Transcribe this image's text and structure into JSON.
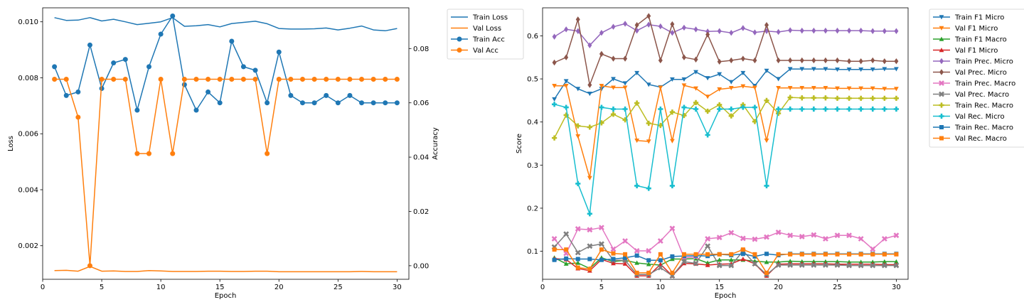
{
  "chart_data": [
    {
      "type": "line",
      "title": "",
      "xlabel": "Epoch",
      "ylabel": "Loss",
      "ylabel_right": "Accuracy",
      "xlim": [
        0,
        31
      ],
      "ylim": [
        0.0008,
        0.0105
      ],
      "ylim_right": [
        -0.005,
        0.095
      ],
      "x_ticks": [
        0,
        5,
        10,
        15,
        20,
        25,
        30
      ],
      "y_ticks": [
        0.002,
        0.004,
        0.006,
        0.008,
        0.01
      ],
      "y_ticks_right": [
        0.0,
        0.02,
        0.04,
        0.06,
        0.08
      ],
      "legend_position": "outside-top-right",
      "grid": false,
      "x": [
        1,
        2,
        3,
        4,
        5,
        6,
        7,
        8,
        9,
        10,
        11,
        12,
        13,
        14,
        15,
        16,
        17,
        18,
        19,
        20,
        21,
        22,
        23,
        24,
        25,
        26,
        27,
        28,
        29,
        30
      ],
      "series": [
        {
          "name": "Train Loss",
          "axis": "left",
          "color": "#1f77b4",
          "marker": "none",
          "values": [
            0.01015,
            0.01005,
            0.01006,
            0.01015,
            0.01003,
            0.01009,
            0.01,
            0.0099,
            0.00995,
            0.01,
            0.01015,
            0.00984,
            0.00986,
            0.0099,
            0.00982,
            0.00994,
            0.00998,
            0.01002,
            0.00993,
            0.00976,
            0.00974,
            0.00974,
            0.00975,
            0.00978,
            0.00971,
            0.00977,
            0.00985,
            0.00971,
            0.00968,
            0.00976
          ]
        },
        {
          "name": "Val Loss",
          "axis": "left",
          "color": "#ff7f0e",
          "marker": "none",
          "values": [
            0.00111,
            0.00112,
            0.00109,
            0.00126,
            0.00109,
            0.0011,
            0.00108,
            0.00108,
            0.00111,
            0.0011,
            0.00108,
            0.00108,
            0.00108,
            0.00109,
            0.00109,
            0.00108,
            0.00108,
            0.00109,
            0.00109,
            0.00107,
            0.00107,
            0.00107,
            0.00107,
            0.00107,
            0.00107,
            0.00107,
            0.00108,
            0.00107,
            0.00107,
            0.00107
          ]
        },
        {
          "name": "Train Acc",
          "axis": "right",
          "color": "#1f77b4",
          "marker": "circle",
          "values": [
            0.0733,
            0.0627,
            0.064,
            0.0813,
            0.0653,
            0.0747,
            0.076,
            0.0573,
            0.0733,
            0.0853,
            0.092,
            0.0667,
            0.0573,
            0.064,
            0.06,
            0.0827,
            0.0733,
            0.072,
            0.06,
            0.0787,
            0.0627,
            0.06,
            0.06,
            0.0627,
            0.06,
            0.0627,
            0.06,
            0.06,
            0.06,
            0.06
          ]
        },
        {
          "name": "Val Acc",
          "axis": "right",
          "color": "#ff7f0e",
          "marker": "circle",
          "values": [
            0.0687,
            0.0687,
            0.0547,
            0.0,
            0.0687,
            0.0687,
            0.0687,
            0.0413,
            0.0413,
            0.0687,
            0.0413,
            0.0687,
            0.0687,
            0.0687,
            0.0687,
            0.0687,
            0.0687,
            0.0687,
            0.0413,
            0.0687,
            0.0687,
            0.0687,
            0.0687,
            0.0687,
            0.0687,
            0.0687,
            0.0687,
            0.0687,
            0.0687,
            0.0687
          ]
        }
      ]
    },
    {
      "type": "line",
      "title": "",
      "xlabel": "Epoch",
      "ylabel": "Score",
      "xlim": [
        0,
        31
      ],
      "ylim": [
        0.035,
        0.665
      ],
      "x_ticks": [
        0,
        5,
        10,
        15,
        20,
        25,
        30
      ],
      "y_ticks": [
        0.1,
        0.2,
        0.3,
        0.4,
        0.5,
        0.6
      ],
      "legend_position": "outside-top-right",
      "grid": false,
      "x": [
        1,
        2,
        3,
        4,
        5,
        6,
        7,
        8,
        9,
        10,
        11,
        12,
        13,
        14,
        15,
        16,
        17,
        18,
        19,
        20,
        21,
        22,
        23,
        24,
        25,
        26,
        27,
        28,
        29,
        30
      ],
      "series": [
        {
          "name": "Train F1 Micro",
          "color": "#1f77b4",
          "marker": "tri-down",
          "values": [
            0.453,
            0.495,
            0.477,
            0.466,
            0.477,
            0.5,
            0.49,
            0.514,
            0.487,
            0.481,
            0.499,
            0.499,
            0.516,
            0.502,
            0.511,
            0.493,
            0.514,
            0.484,
            0.519,
            0.5,
            0.523,
            0.523,
            0.523,
            0.523,
            0.522,
            0.522,
            0.522,
            0.522,
            0.523,
            0.523
          ]
        },
        {
          "name": "Val F1 Micro",
          "color": "#ff7f0e",
          "marker": "tri-down",
          "values": [
            0.484,
            0.484,
            0.367,
            0.27,
            0.484,
            0.48,
            0.48,
            0.357,
            0.355,
            0.48,
            0.356,
            0.485,
            0.478,
            0.459,
            0.476,
            0.479,
            0.483,
            0.48,
            0.357,
            0.479,
            0.479,
            0.479,
            0.479,
            0.479,
            0.478,
            0.478,
            0.478,
            0.478,
            0.477,
            0.477
          ]
        },
        {
          "name": "Train F1 Macro",
          "color": "#2ca02c",
          "marker": "tri-up",
          "values": [
            0.085,
            0.071,
            0.073,
            0.06,
            0.085,
            0.076,
            0.079,
            0.073,
            0.07,
            0.068,
            0.082,
            0.082,
            0.083,
            0.073,
            0.08,
            0.08,
            0.08,
            0.077,
            0.075,
            0.075,
            0.077,
            0.076,
            0.076,
            0.076,
            0.076,
            0.075,
            0.075,
            0.075,
            0.076,
            0.076
          ]
        },
        {
          "name": "Val F1 Micro",
          "color": "#d62728",
          "marker": "tri-up",
          "values": [
            0.083,
            0.081,
            0.06,
            0.055,
            0.081,
            0.072,
            0.071,
            0.043,
            0.043,
            0.07,
            0.043,
            0.072,
            0.071,
            0.068,
            0.07,
            0.071,
            0.082,
            0.071,
            0.043,
            0.07,
            0.071,
            0.071,
            0.071,
            0.071,
            0.07,
            0.07,
            0.07,
            0.07,
            0.069,
            0.069
          ]
        },
        {
          "name": "Train Prec. Micro",
          "color": "#9467bd",
          "marker": "diamond",
          "values": [
            0.598,
            0.615,
            0.611,
            0.578,
            0.607,
            0.621,
            0.628,
            0.612,
            0.626,
            0.622,
            0.607,
            0.619,
            0.615,
            0.61,
            0.611,
            0.607,
            0.618,
            0.608,
            0.611,
            0.609,
            0.613,
            0.612,
            0.612,
            0.612,
            0.612,
            0.612,
            0.612,
            0.611,
            0.611,
            0.611
          ]
        },
        {
          "name": "Val Prec. Micro",
          "color": "#8c564b",
          "marker": "diamond",
          "values": [
            0.538,
            0.55,
            0.638,
            0.486,
            0.558,
            0.547,
            0.547,
            0.625,
            0.646,
            0.543,
            0.627,
            0.55,
            0.545,
            0.603,
            0.54,
            0.543,
            0.547,
            0.543,
            0.625,
            0.543,
            0.543,
            0.543,
            0.543,
            0.543,
            0.543,
            0.541,
            0.541,
            0.543,
            0.541,
            0.541
          ]
        },
        {
          "name": "Train Prec. Macro",
          "color": "#e377c2",
          "marker": "cross",
          "values": [
            0.129,
            0.095,
            0.152,
            0.15,
            0.155,
            0.105,
            0.124,
            0.101,
            0.101,
            0.124,
            0.153,
            0.085,
            0.087,
            0.129,
            0.132,
            0.143,
            0.13,
            0.128,
            0.133,
            0.144,
            0.137,
            0.134,
            0.138,
            0.129,
            0.137,
            0.137,
            0.129,
            0.105,
            0.129,
            0.137
          ]
        },
        {
          "name": "Val Prec. Macro",
          "color": "#7f7f7f",
          "marker": "cross",
          "values": [
            0.11,
            0.14,
            0.097,
            0.112,
            0.117,
            0.079,
            0.079,
            0.046,
            0.046,
            0.062,
            0.043,
            0.076,
            0.072,
            0.112,
            0.067,
            0.067,
            0.101,
            0.071,
            0.046,
            0.068,
            0.068,
            0.068,
            0.068,
            0.068,
            0.068,
            0.067,
            0.067,
            0.067,
            0.067,
            0.067
          ]
        },
        {
          "name": "Train Rec. Macro",
          "color": "#bcbd22",
          "marker": "plus",
          "values": [
            0.363,
            0.416,
            0.391,
            0.388,
            0.398,
            0.418,
            0.405,
            0.444,
            0.397,
            0.392,
            0.423,
            0.415,
            0.445,
            0.425,
            0.44,
            0.414,
            0.44,
            0.401,
            0.45,
            0.42,
            0.457,
            0.456,
            0.456,
            0.456,
            0.455,
            0.455,
            0.455,
            0.455,
            0.455,
            0.455
          ]
        },
        {
          "name": "Val Rec. Micro",
          "color": "#17becf",
          "marker": "plus",
          "values": [
            0.441,
            0.434,
            0.257,
            0.187,
            0.434,
            0.43,
            0.43,
            0.252,
            0.246,
            0.43,
            0.252,
            0.434,
            0.43,
            0.37,
            0.43,
            0.43,
            0.434,
            0.434,
            0.252,
            0.43,
            0.43,
            0.43,
            0.43,
            0.43,
            0.43,
            0.43,
            0.43,
            0.43,
            0.43,
            0.43
          ]
        },
        {
          "name": "Train Rec. Macro",
          "color": "#1f77b4",
          "marker": "square",
          "values": [
            0.08,
            0.083,
            0.082,
            0.082,
            0.08,
            0.082,
            0.085,
            0.09,
            0.079,
            0.079,
            0.088,
            0.089,
            0.09,
            0.089,
            0.093,
            0.091,
            0.094,
            0.088,
            0.094,
            0.091,
            0.094,
            0.094,
            0.094,
            0.094,
            0.094,
            0.094,
            0.094,
            0.094,
            0.094,
            0.094
          ]
        },
        {
          "name": "Val Rec. Macro",
          "color": "#ff7f0e",
          "marker": "square",
          "values": [
            0.104,
            0.104,
            0.062,
            0.059,
            0.104,
            0.095,
            0.093,
            0.05,
            0.05,
            0.093,
            0.05,
            0.093,
            0.093,
            0.093,
            0.093,
            0.093,
            0.104,
            0.093,
            0.05,
            0.093,
            0.093,
            0.093,
            0.093,
            0.093,
            0.093,
            0.093,
            0.093,
            0.093,
            0.093,
            0.093
          ]
        }
      ]
    }
  ]
}
